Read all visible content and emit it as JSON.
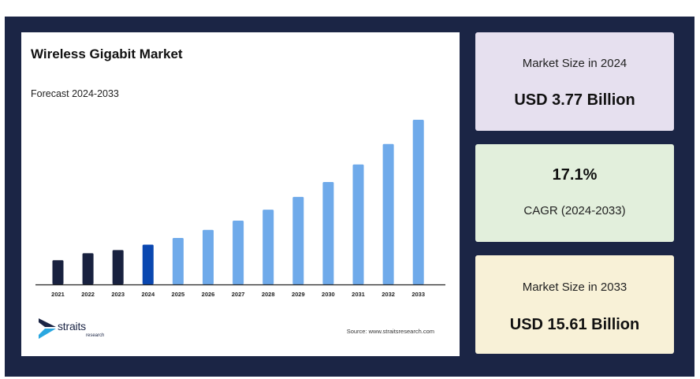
{
  "colors": {
    "frame": "#1b2545",
    "historic_bar": "#18213f",
    "base_year_bar": "#0a47b0",
    "forecast_bar": "#6faaea",
    "card_2024": "#e6e0ef",
    "card_cagr": "#e2efdc",
    "card_2033": "#f8f1d7"
  },
  "chart_data": {
    "type": "bar",
    "title": "Wireless Gigabit Market",
    "subtitle": "Forecast 2024-2033",
    "categories": [
      "2021",
      "2022",
      "2023",
      "2024",
      "2025",
      "2026",
      "2027",
      "2028",
      "2029",
      "2030",
      "2031",
      "2032",
      "2033"
    ],
    "values": [
      2.3,
      2.96,
      3.26,
      3.77,
      4.41,
      5.17,
      6.05,
      7.09,
      8.3,
      9.71,
      11.37,
      13.32,
      15.61
    ],
    "value_unit": "USD Billion",
    "base_year": "2024",
    "grid": false,
    "legend": "none"
  },
  "branding": {
    "logo_icon": "straits-chevron-icon",
    "logo_word": "straits",
    "logo_sub": "research",
    "source": "Source: www.straitsresearch.com"
  },
  "cards": {
    "size_2024": {
      "label": "Market Size in 2024",
      "value": "USD 3.77 Billion"
    },
    "cagr": {
      "value": "17.1%",
      "label": "CAGR (2024-2033)"
    },
    "size_2033": {
      "label": "Market Size in 2033",
      "value": "USD 15.61 Billion"
    }
  }
}
